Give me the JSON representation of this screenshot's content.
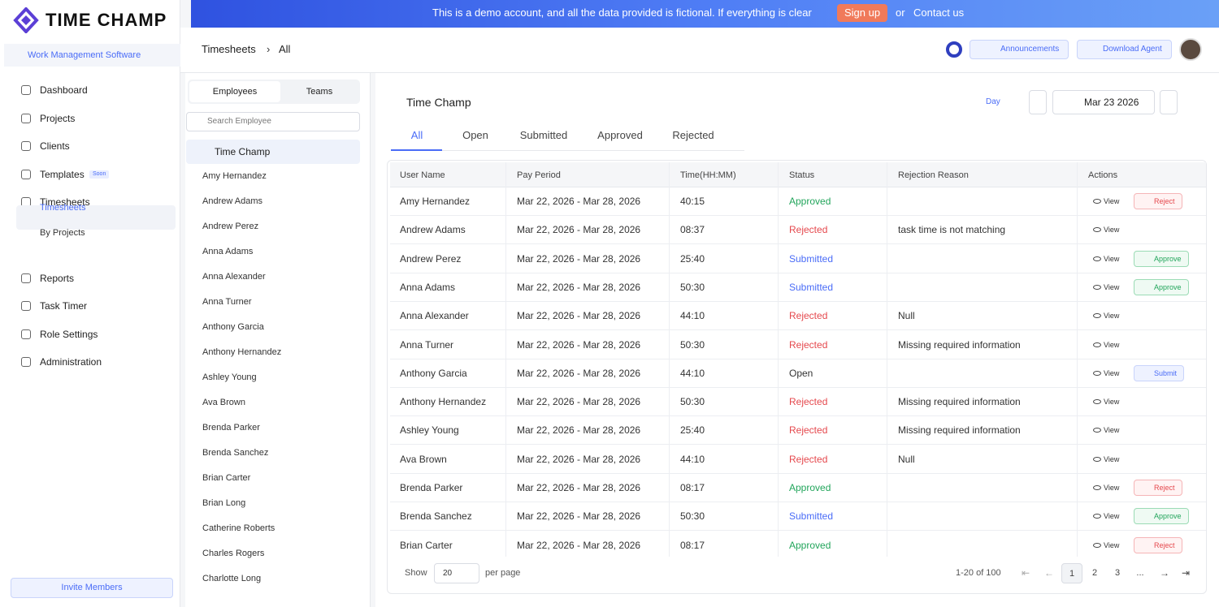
{
  "logo": "TIME CHAMP",
  "banner": {
    "text": "This is a demo account, and all the data provided is fictional. If everything is clear",
    "signup": "Sign up",
    "or": "or",
    "contact": "Contact us"
  },
  "workspace": "Work Management Software",
  "nav": [
    {
      "label": "Dashboard"
    },
    {
      "label": "Projects"
    },
    {
      "label": "Clients"
    },
    {
      "label": "Templates",
      "badge": "Soon"
    },
    {
      "label": "Timesheets",
      "children": [
        "Timesheets",
        "By Projects"
      ]
    },
    {
      "label": "Reports"
    },
    {
      "label": "Task Timer"
    },
    {
      "label": "Role Settings"
    },
    {
      "label": "Administration"
    }
  ],
  "invite": "Invite Members",
  "breadcrumb": [
    "Timesheets",
    "All"
  ],
  "header_buttons": [
    "Announcements",
    "Download Agent"
  ],
  "employees_panel": {
    "tabs": [
      "Employees",
      "Teams"
    ],
    "search": "Search Employee",
    "org": "Time Champ",
    "employees": [
      "Amy Hernandez",
      "Andrew Adams",
      "Andrew Perez",
      "Anna Adams",
      "Anna Alexander",
      "Anna Turner",
      "Anthony Garcia",
      "Anthony Hernandez",
      "Ashley Young",
      "Ava Brown",
      "Brenda Parker",
      "Brenda Sanchez",
      "Brian Carter",
      "Brian Long",
      "Catherine Roberts",
      "Charles Rogers",
      "Charlotte Long"
    ]
  },
  "main": {
    "title": "Time Champ",
    "view": "Day",
    "date": "Mar 23 2026",
    "tabs": [
      "All",
      "Open",
      "Submitted",
      "Approved",
      "Rejected"
    ],
    "status_colors": {
      "Approved": "#22a55b",
      "Rejected": "#e5484d",
      "Submitted": "#4a6cf7",
      "Open": "#333333"
    },
    "view_label": "View",
    "columns": [
      "User Name",
      "Pay Period",
      "Time(HH:MM)",
      "Status",
      "Rejection Reason",
      "Actions"
    ],
    "rows": [
      {
        "user": "Amy Hernandez",
        "period": "Mar 22, 2026 - Mar 28, 2026",
        "time": "40:15",
        "status": "Approved",
        "action": "Reject"
      },
      {
        "user": "Andrew Adams",
        "period": "Mar 22, 2026 - Mar 28, 2026",
        "time": "08:37",
        "status": "Rejected",
        "reason": "task time is not matching"
      },
      {
        "user": "Andrew Perez",
        "period": "Mar 22, 2026 - Mar 28, 2026",
        "time": "25:40",
        "status": "Submitted",
        "action": "Approve"
      },
      {
        "user": "Anna Adams",
        "period": "Mar 22, 2026 - Mar 28, 2026",
        "time": "50:30",
        "status": "Submitted",
        "action": "Approve"
      },
      {
        "user": "Anna Alexander",
        "period": "Mar 22, 2026 - Mar 28, 2026",
        "time": "44:10",
        "status": "Rejected",
        "reason": "Null"
      },
      {
        "user": "Anna Turner",
        "period": "Mar 22, 2026 - Mar 28, 2026",
        "time": "50:30",
        "status": "Rejected",
        "reason": "Missing required information"
      },
      {
        "user": "Anthony Garcia",
        "period": "Mar 22, 2026 - Mar 28, 2026",
        "time": "44:10",
        "status": "Open",
        "action": "Submit"
      },
      {
        "user": "Anthony Hernandez",
        "period": "Mar 22, 2026 - Mar 28, 2026",
        "time": "50:30",
        "status": "Rejected",
        "reason": "Missing required information"
      },
      {
        "user": "Ashley Young",
        "period": "Mar 22, 2026 - Mar 28, 2026",
        "time": "25:40",
        "status": "Rejected",
        "reason": "Missing required information"
      },
      {
        "user": "Ava Brown",
        "period": "Mar 22, 2026 - Mar 28, 2026",
        "time": "44:10",
        "status": "Rejected",
        "reason": "Null"
      },
      {
        "user": "Brenda Parker",
        "period": "Mar 22, 2026 - Mar 28, 2026",
        "time": "08:17",
        "status": "Approved",
        "action": "Reject"
      },
      {
        "user": "Brenda Sanchez",
        "period": "Mar 22, 2026 - Mar 28, 2026",
        "time": "50:30",
        "status": "Submitted",
        "action": "Approve"
      },
      {
        "user": "Brian Carter",
        "period": "Mar 22, 2026 - Mar 28, 2026",
        "time": "08:17",
        "status": "Approved",
        "action": "Reject"
      }
    ],
    "pagination": {
      "show": "Show",
      "per_page_value": "20",
      "per_page": "per page",
      "range": "1-20 of 100",
      "pages": [
        "1",
        "2",
        "3",
        "..."
      ]
    }
  }
}
